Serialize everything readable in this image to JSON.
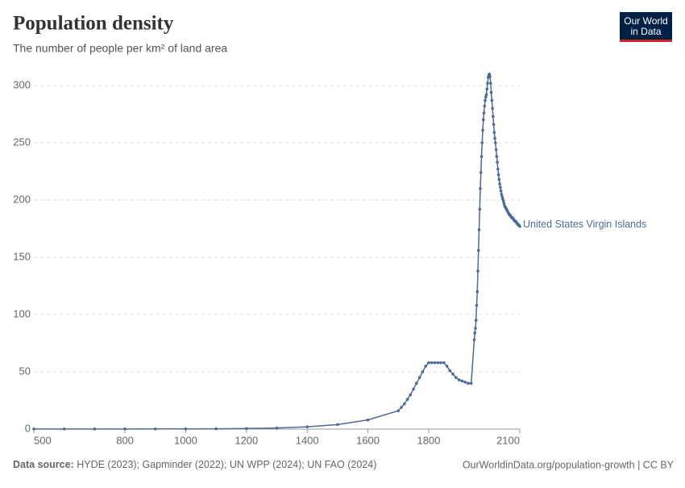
{
  "chart_data": {
    "type": "line",
    "title": "Population density",
    "subtitle": "The number of people per km² of land area",
    "logo": [
      "Our World",
      "in Data"
    ],
    "source_label": "Data source:",
    "source": "HYDE (2023); Gapminder (2022); UN WPP (2024); UN FAO (2024)",
    "url": "OurWorldinData.org/population-growth | CC BY",
    "xlim": [
      500,
      2100
    ],
    "xticks": [
      500,
      800,
      1000,
      1200,
      1400,
      1600,
      1800,
      2100
    ],
    "ylim": [
      0,
      310
    ],
    "yticks": [
      0,
      50,
      100,
      150,
      200,
      250,
      300
    ],
    "grid": true,
    "x": [
      500,
      600,
      700,
      800,
      900,
      1000,
      1100,
      1200,
      1300,
      1400,
      1500,
      1600,
      1700,
      1710,
      1720,
      1730,
      1740,
      1750,
      1760,
      1770,
      1780,
      1790,
      1800,
      1810,
      1820,
      1830,
      1840,
      1850,
      1860,
      1870,
      1880,
      1890,
      1900,
      1910,
      1920,
      1930,
      1940,
      1950,
      1952,
      1954,
      1956,
      1958,
      1960,
      1962,
      1964,
      1966,
      1968,
      1970,
      1972,
      1974,
      1976,
      1978,
      1980,
      1982,
      1984,
      1986,
      1988,
      1990,
      1992,
      1994,
      1996,
      1998,
      2000,
      2002,
      2004,
      2006,
      2008,
      2010,
      2012,
      2014,
      2016,
      2018,
      2020,
      2022,
      2024,
      2026,
      2028,
      2030,
      2032,
      2034,
      2036,
      2038,
      2040,
      2042,
      2044,
      2046,
      2048,
      2050,
      2052,
      2054,
      2056,
      2058,
      2060,
      2062,
      2064,
      2066,
      2068,
      2070,
      2072,
      2074,
      2076,
      2078,
      2080,
      2082,
      2084,
      2086,
      2088,
      2090,
      2092,
      2094,
      2096,
      2098,
      2100
    ],
    "series": [
      {
        "name": "United States Virgin Islands",
        "color": "#4c6a9c",
        "values": [
          0.1,
          0.1,
          0.1,
          0.1,
          0.15,
          0.2,
          0.3,
          0.5,
          1,
          2,
          4,
          8,
          16,
          19,
          22,
          26,
          30,
          35,
          40,
          45,
          50,
          55,
          58,
          58,
          58,
          58,
          58,
          58,
          55,
          51,
          48,
          45,
          43,
          42,
          41,
          40,
          40,
          78,
          84,
          88,
          95,
          108,
          120,
          138,
          156,
          174,
          192,
          210,
          224,
          238,
          250,
          261,
          270,
          276,
          282,
          287,
          290,
          292,
          297,
          302,
          307,
          309,
          310,
          308,
          302,
          294,
          287,
          280,
          273,
          266,
          259,
          254,
          250,
          244,
          238,
          233,
          227,
          222,
          218,
          214,
          211,
          208,
          205,
          203,
          201,
          199,
          197,
          195,
          194,
          193,
          192,
          191,
          190,
          189,
          188,
          187,
          187,
          186,
          185,
          185,
          184,
          184,
          183,
          182,
          182,
          181,
          181,
          180,
          179,
          179,
          178,
          178,
          177
        ]
      }
    ]
  }
}
